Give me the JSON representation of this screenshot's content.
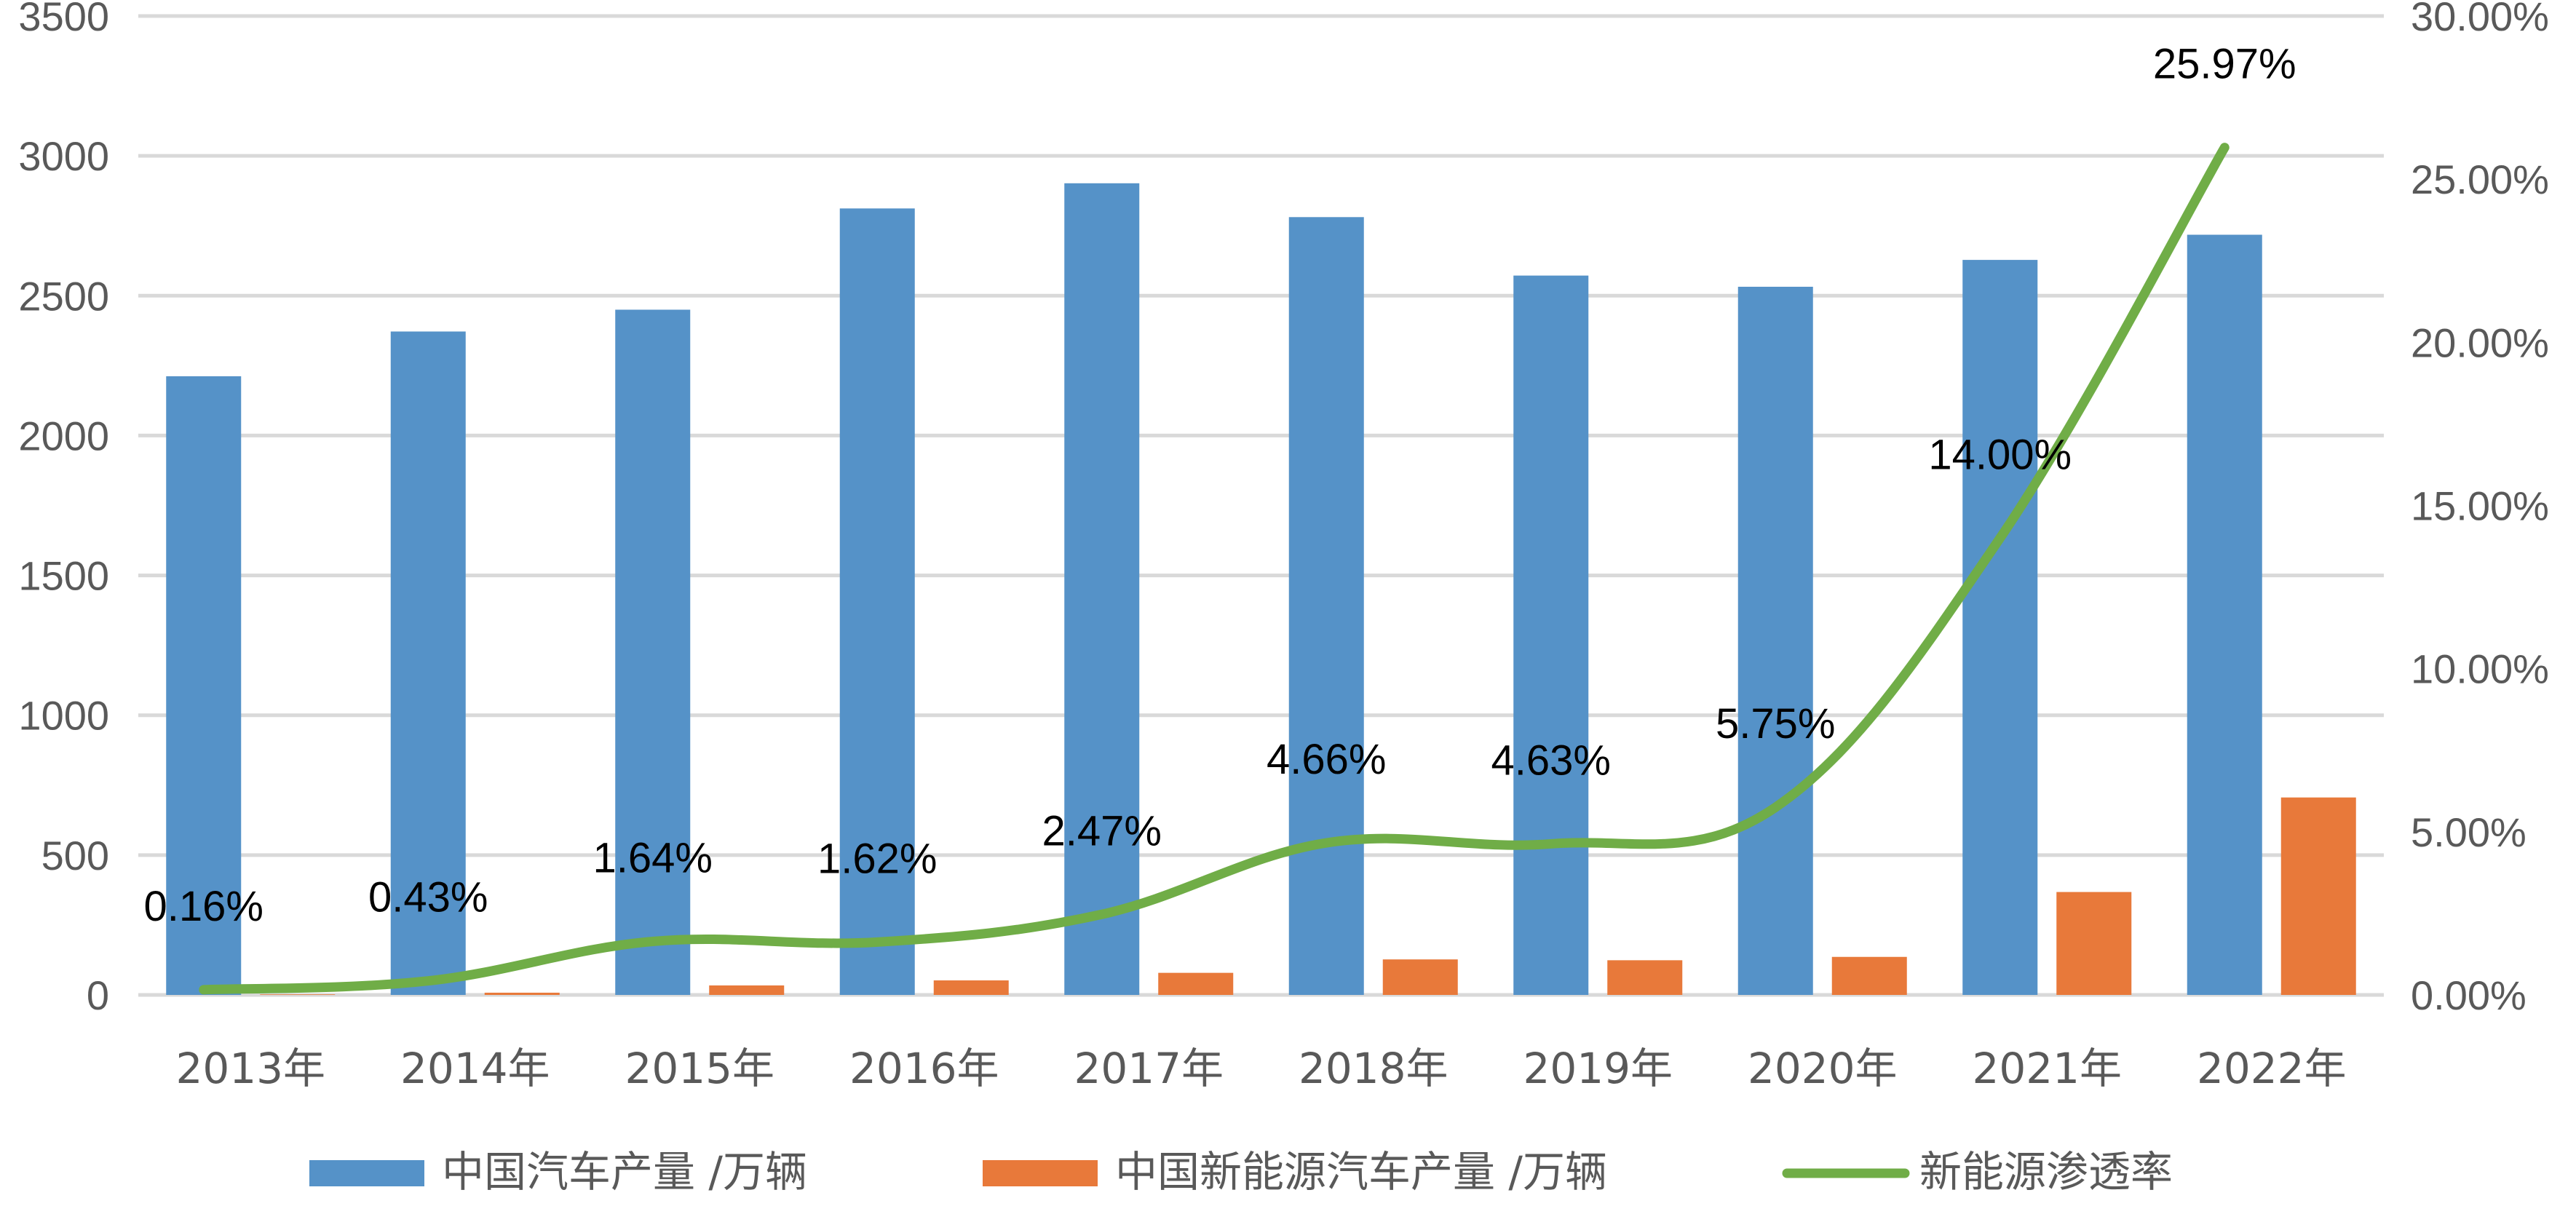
{
  "chart_data": {
    "type": "bar",
    "categories": [
      "2013年",
      "2014年",
      "2015年",
      "2016年",
      "2017年",
      "2018年",
      "2019年",
      "2020年",
      "2021年",
      "2022年"
    ],
    "series": [
      {
        "name": "中国汽车产量 /万辆",
        "type": "bar",
        "axis": "left",
        "color": "#5592C8",
        "values": [
          2212,
          2372,
          2450,
          2812,
          2902,
          2781,
          2572,
          2532,
          2628,
          2718
        ]
      },
      {
        "name": "中国新能源汽车产量 /万辆",
        "type": "bar",
        "axis": "left",
        "color": "#E8793A",
        "values": [
          2,
          8,
          34,
          52,
          79,
          127,
          124,
          136,
          368,
          706
        ]
      },
      {
        "name": "新能源渗透率",
        "type": "line",
        "axis": "right",
        "color": "#70AD47",
        "values": [
          0.16,
          0.43,
          1.64,
          1.62,
          2.47,
          4.66,
          4.63,
          5.75,
          14.0,
          25.97
        ],
        "labels": [
          "0.16%",
          "0.43%",
          "1.64%",
          "1.62%",
          "2.47%",
          "4.66%",
          "4.63%",
          "5.75%",
          "14.00%",
          "25.97%"
        ]
      }
    ],
    "y_left": {
      "lim": [
        0,
        3500
      ],
      "ticks": [
        0,
        500,
        1000,
        1500,
        2000,
        2500,
        3000,
        3500
      ],
      "tick_labels": [
        "0",
        "500",
        "1000",
        "1500",
        "2000",
        "2500",
        "3000",
        "3500"
      ]
    },
    "y_right": {
      "lim": [
        0,
        30
      ],
      "ticks": [
        0,
        5,
        10,
        15,
        20,
        25,
        30
      ],
      "tick_labels": [
        "0.00%",
        "5.00%",
        "10.00%",
        "15.00%",
        "20.00%",
        "25.00%",
        "30.00%"
      ]
    },
    "gridlines": true,
    "legend_position": "bottom",
    "legend": [
      {
        "label": "中国汽车产量 /万辆",
        "kind": "bar"
      },
      {
        "label": "中国新能源汽车产量 /万辆",
        "kind": "bar"
      },
      {
        "label": "新能源渗透率",
        "kind": "line"
      }
    ]
  }
}
